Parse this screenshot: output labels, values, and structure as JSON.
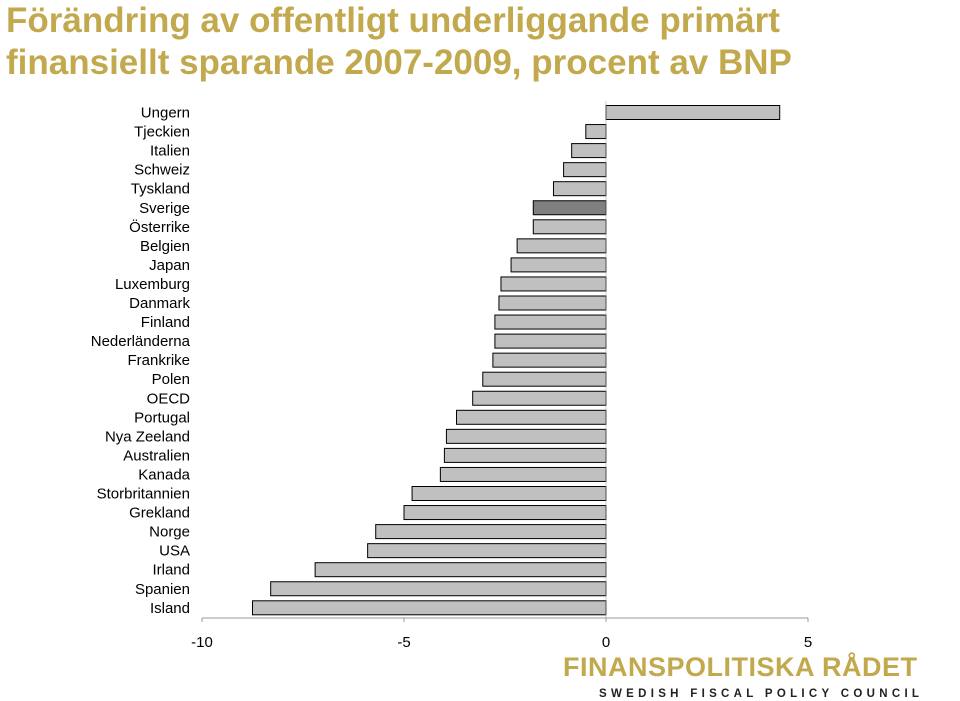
{
  "title": {
    "line1": "Förändring av offentligt underliggande primärt",
    "line2": "finansiellt sparande 2007-2009, procent av BNP"
  },
  "colors": {
    "title": "#c2a94e",
    "bar": "#c0c0c0",
    "highlight_bar": "#7f7f7f",
    "bar_stroke": "#000000",
    "logo_main": "#c2a94e",
    "logo_sub": "#222222"
  },
  "chart_data": {
    "type": "bar",
    "orientation": "horizontal",
    "categories": [
      "Ungern",
      "Tjeckien",
      "Italien",
      "Schweiz",
      "Tyskland",
      "Sverige",
      "Österrike",
      "Belgien",
      "Japan",
      "Luxemburg",
      "Danmark",
      "Finland",
      "Nederländerna",
      "Frankrike",
      "Polen",
      "OECD",
      "Portugal",
      "Nya Zeeland",
      "Australien",
      "Kanada",
      "Storbritannien",
      "Grekland",
      "Norge",
      "USA",
      "Irland",
      "Spanien",
      "Island"
    ],
    "values": [
      4.3,
      -0.5,
      -0.85,
      -1.05,
      -1.3,
      -1.8,
      -1.8,
      -2.2,
      -2.35,
      -2.6,
      -2.65,
      -2.75,
      -2.75,
      -2.8,
      -3.05,
      -3.3,
      -3.7,
      -3.95,
      -4.0,
      -4.1,
      -4.8,
      -5.0,
      -5.7,
      -5.9,
      -7.2,
      -8.3,
      -8.75
    ],
    "highlight": [
      "Sverige"
    ],
    "xlim": [
      -10,
      5
    ],
    "xticks": [
      "-10",
      "-5",
      "0",
      "5"
    ],
    "grid": false,
    "legend": "none"
  },
  "logo": {
    "main": "FINANSPOLITISKA RÅDET",
    "sub": "SWEDISH FISCAL POLICY COUNCIL"
  }
}
